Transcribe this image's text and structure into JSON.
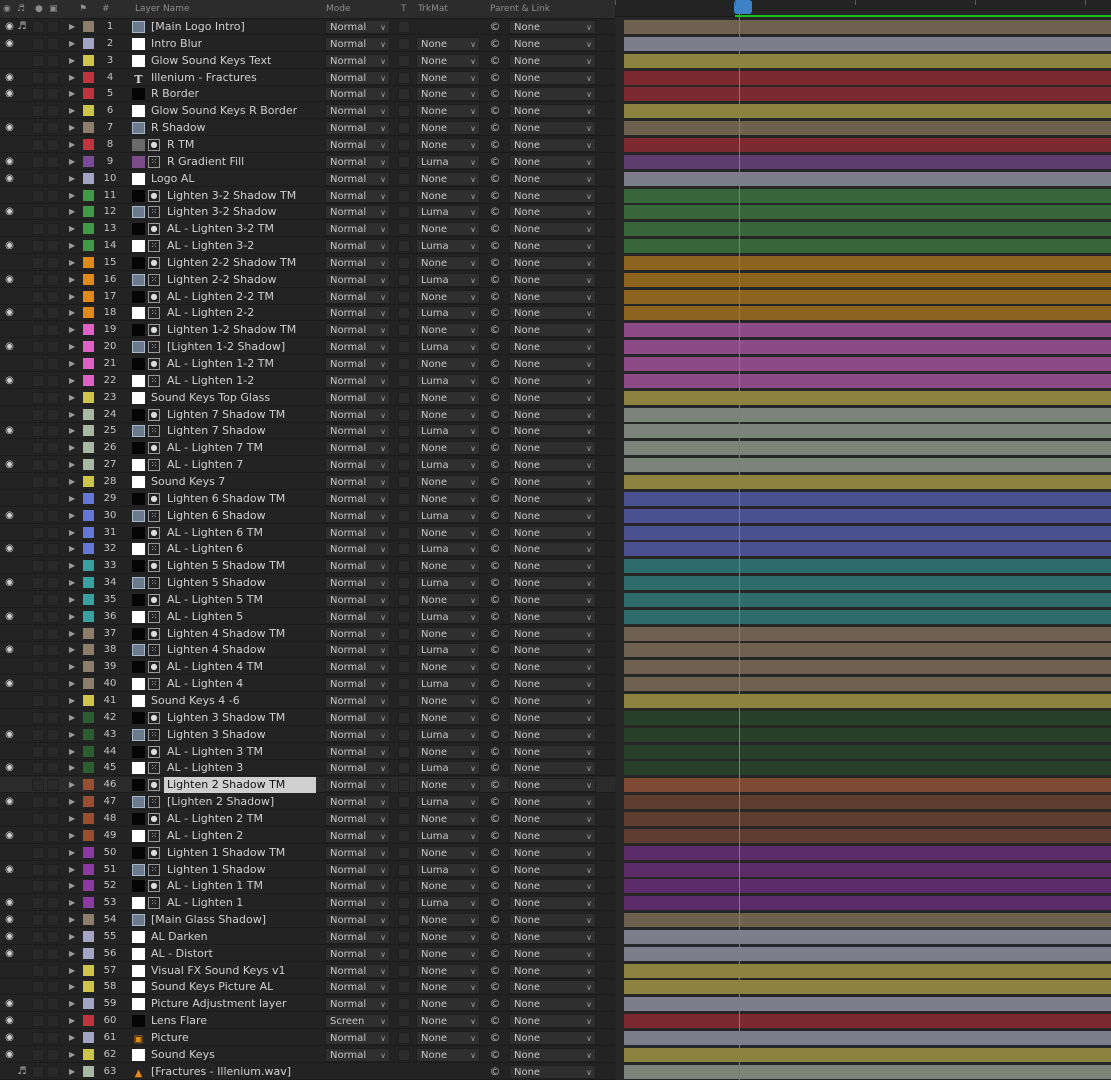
{
  "header": {
    "col_num": "#",
    "col_name": "Layer Name",
    "col_mode": "Mode",
    "col_t": "T",
    "col_trkmat": "TrkMat",
    "col_parent": "Parent & Link"
  },
  "colors": {
    "tan": "#8c7e6a",
    "lavender": "#a4a4c6",
    "yellow": "#cfc44a",
    "red": "#c0353c",
    "purple": "#7a4a98",
    "green": "#3e9a46",
    "orange": "#e08a1c",
    "pink": "#e060c8",
    "sage": "#a9b8a2",
    "blue": "#6378d8",
    "teal": "#38a0a0",
    "darkgreen": "#2a5e2e",
    "brown": "#9a4e30",
    "dkpurple": "#8a3aa0",
    "cti": "#3a8fd8",
    "workarea": "#18c020",
    "selected_bar": "#7e4a34"
  },
  "bar_colors": {
    "tan": "#6e6150",
    "lavender": "#7d7d8c",
    "yellow": "#8c8340",
    "red": "#7c2a30",
    "purple": "#5e3c6e",
    "green": "#36663a",
    "orange": "#8c6420",
    "pink": "#8c4a86",
    "sage": "#7a847a",
    "blue": "#4a5090",
    "teal": "#2e6c6c",
    "darkgreen": "#28402a",
    "brown": "#5e3c30",
    "dkpurple": "#5c2c68"
  },
  "layers": [
    {
      "num": "1",
      "name": "[Main Logo Intro]",
      "color": "tan",
      "eye": true,
      "audio": true,
      "type": "comp",
      "mode": "Normal",
      "trkmat": "",
      "parent": "None"
    },
    {
      "num": "2",
      "name": "Intro Blur",
      "color": "lavender",
      "eye": true,
      "type": "white",
      "mode": "Normal",
      "trkmat": "None",
      "parent": "None"
    },
    {
      "num": "3",
      "name": "Glow Sound Keys Text",
      "color": "yellow",
      "type": "white",
      "mode": "Normal",
      "trkmat": "None",
      "parent": "None"
    },
    {
      "num": "4",
      "name": "Illenium - Fractures",
      "color": "red",
      "eye": true,
      "type": "text",
      "mode": "Normal",
      "trkmat": "None",
      "parent": "None"
    },
    {
      "num": "5",
      "name": "R Border",
      "color": "red",
      "eye": true,
      "type": "black",
      "mode": "Normal",
      "trkmat": "None",
      "parent": "None"
    },
    {
      "num": "6",
      "name": "Glow Sound Keys R Border",
      "color": "yellow",
      "type": "white",
      "mode": "Normal",
      "trkmat": "None",
      "parent": "None"
    },
    {
      "num": "7",
      "name": "R Shadow",
      "color": "tan",
      "eye": true,
      "type": "comp",
      "mode": "Normal",
      "trkmat": "None",
      "parent": "None"
    },
    {
      "num": "8",
      "name": "R TM",
      "color": "red",
      "type": "gray",
      "mbox": "dot",
      "mode": "Normal",
      "trkmat": "None",
      "parent": "None"
    },
    {
      "num": "9",
      "name": "R Gradient Fill",
      "color": "purple",
      "eye": true,
      "type": "purple",
      "mbox": "dash",
      "mode": "Normal",
      "trkmat": "Luma",
      "parent": "None"
    },
    {
      "num": "10",
      "name": "Logo AL",
      "color": "lavender",
      "eye": true,
      "type": "white",
      "mode": "Normal",
      "trkmat": "None",
      "parent": "None"
    },
    {
      "num": "11",
      "name": "Lighten 3-2 Shadow TM",
      "color": "green",
      "type": "black",
      "mbox": "dot",
      "mode": "Normal",
      "trkmat": "None",
      "parent": "None"
    },
    {
      "num": "12",
      "name": "Lighten 3-2 Shadow",
      "color": "green",
      "eye": true,
      "type": "comp",
      "mbox": "dash",
      "mode": "Normal",
      "trkmat": "Luma",
      "parent": "None"
    },
    {
      "num": "13",
      "name": "AL - Lighten 3-2 TM",
      "color": "green",
      "type": "black",
      "mbox": "dot",
      "mode": "Normal",
      "trkmat": "None",
      "parent": "None"
    },
    {
      "num": "14",
      "name": "AL - Lighten 3-2",
      "color": "green",
      "eye": true,
      "type": "white",
      "mbox": "dash",
      "mode": "Normal",
      "trkmat": "Luma",
      "parent": "None"
    },
    {
      "num": "15",
      "name": "Lighten 2-2 Shadow TM",
      "color": "orange",
      "type": "black",
      "mbox": "dot",
      "mode": "Normal",
      "trkmat": "None",
      "parent": "None"
    },
    {
      "num": "16",
      "name": "Lighten 2-2 Shadow",
      "color": "orange",
      "eye": true,
      "type": "comp",
      "mbox": "dash",
      "mode": "Normal",
      "trkmat": "Luma",
      "parent": "None"
    },
    {
      "num": "17",
      "name": "AL - Lighten 2-2 TM",
      "color": "orange",
      "type": "black",
      "mbox": "dot",
      "mode": "Normal",
      "trkmat": "None",
      "parent": "None"
    },
    {
      "num": "18",
      "name": "AL - Lighten 2-2",
      "color": "orange",
      "eye": true,
      "type": "white",
      "mbox": "dash",
      "mode": "Normal",
      "trkmat": "Luma",
      "parent": "None"
    },
    {
      "num": "19",
      "name": "Lighten 1-2 Shadow TM",
      "color": "pink",
      "type": "black",
      "mbox": "dot",
      "mode": "Normal",
      "trkmat": "None",
      "parent": "None"
    },
    {
      "num": "20",
      "name": "[Lighten 1-2 Shadow]",
      "color": "pink",
      "eye": true,
      "type": "comp",
      "mbox": "dash",
      "mode": "Normal",
      "trkmat": "Luma",
      "parent": "None"
    },
    {
      "num": "21",
      "name": "AL - Lighten 1-2 TM",
      "color": "pink",
      "type": "black",
      "mbox": "dot",
      "mode": "Normal",
      "trkmat": "None",
      "parent": "None"
    },
    {
      "num": "22",
      "name": "AL - Lighten 1-2",
      "color": "pink",
      "eye": true,
      "type": "white",
      "mbox": "dash",
      "mode": "Normal",
      "trkmat": "Luma",
      "parent": "None"
    },
    {
      "num": "23",
      "name": "Sound Keys Top Glass",
      "color": "yellow",
      "type": "white",
      "mode": "Normal",
      "trkmat": "None",
      "parent": "None"
    },
    {
      "num": "24",
      "name": "Lighten 7 Shadow TM",
      "color": "sage",
      "type": "black",
      "mbox": "dot",
      "mode": "Normal",
      "trkmat": "None",
      "parent": "None"
    },
    {
      "num": "25",
      "name": "Lighten 7 Shadow",
      "color": "sage",
      "eye": true,
      "type": "comp",
      "mbox": "dash",
      "mode": "Normal",
      "trkmat": "Luma",
      "parent": "None"
    },
    {
      "num": "26",
      "name": "AL - Lighten 7 TM",
      "color": "sage",
      "type": "black",
      "mbox": "dot",
      "mode": "Normal",
      "trkmat": "None",
      "parent": "None"
    },
    {
      "num": "27",
      "name": "AL - Lighten 7",
      "color": "sage",
      "eye": true,
      "type": "white",
      "mbox": "dash",
      "mode": "Normal",
      "trkmat": "Luma",
      "parent": "None"
    },
    {
      "num": "28",
      "name": "Sound Keys 7",
      "color": "yellow",
      "type": "white",
      "mode": "Normal",
      "trkmat": "None",
      "parent": "None"
    },
    {
      "num": "29",
      "name": "Lighten 6 Shadow TM",
      "color": "blue",
      "type": "black",
      "mbox": "dot",
      "mode": "Normal",
      "trkmat": "None",
      "parent": "None"
    },
    {
      "num": "30",
      "name": "Lighten 6 Shadow",
      "color": "blue",
      "eye": true,
      "type": "comp",
      "mbox": "dash",
      "mode": "Normal",
      "trkmat": "Luma",
      "parent": "None"
    },
    {
      "num": "31",
      "name": "AL - Lighten 6 TM",
      "color": "blue",
      "type": "black",
      "mbox": "dot",
      "mode": "Normal",
      "trkmat": "None",
      "parent": "None"
    },
    {
      "num": "32",
      "name": "AL - Lighten 6",
      "color": "blue",
      "eye": true,
      "type": "white",
      "mbox": "dash",
      "mode": "Normal",
      "trkmat": "Luma",
      "parent": "None"
    },
    {
      "num": "33",
      "name": "Lighten 5 Shadow TM",
      "color": "teal",
      "type": "black",
      "mbox": "dot",
      "mode": "Normal",
      "trkmat": "None",
      "parent": "None"
    },
    {
      "num": "34",
      "name": "Lighten 5 Shadow",
      "color": "teal",
      "eye": true,
      "type": "comp",
      "mbox": "dash",
      "mode": "Normal",
      "trkmat": "Luma",
      "parent": "None"
    },
    {
      "num": "35",
      "name": "AL - Lighten 5 TM",
      "color": "teal",
      "type": "black",
      "mbox": "dot",
      "mode": "Normal",
      "trkmat": "None",
      "parent": "None"
    },
    {
      "num": "36",
      "name": "AL - Lighten 5",
      "color": "teal",
      "eye": true,
      "type": "white",
      "mbox": "dash",
      "mode": "Normal",
      "trkmat": "Luma",
      "parent": "None"
    },
    {
      "num": "37",
      "name": "Lighten 4 Shadow TM",
      "color": "tan",
      "type": "black",
      "mbox": "dot",
      "mode": "Normal",
      "trkmat": "None",
      "parent": "None"
    },
    {
      "num": "38",
      "name": "Lighten 4 Shadow",
      "color": "tan",
      "eye": true,
      "type": "comp",
      "mbox": "dash",
      "mode": "Normal",
      "trkmat": "Luma",
      "parent": "None"
    },
    {
      "num": "39",
      "name": "AL - Lighten 4 TM",
      "color": "tan",
      "type": "black",
      "mbox": "dot",
      "mode": "Normal",
      "trkmat": "None",
      "parent": "None"
    },
    {
      "num": "40",
      "name": "AL - Lighten 4",
      "color": "tan",
      "eye": true,
      "type": "white",
      "mbox": "dash",
      "mode": "Normal",
      "trkmat": "Luma",
      "parent": "None"
    },
    {
      "num": "41",
      "name": "Sound Keys 4 -6",
      "color": "yellow",
      "type": "white",
      "mode": "Normal",
      "trkmat": "None",
      "parent": "None"
    },
    {
      "num": "42",
      "name": "Lighten 3 Shadow TM",
      "color": "darkgreen",
      "type": "black",
      "mbox": "dot",
      "mode": "Normal",
      "trkmat": "None",
      "parent": "None"
    },
    {
      "num": "43",
      "name": "Lighten 3 Shadow",
      "color": "darkgreen",
      "eye": true,
      "type": "comp",
      "mbox": "dash",
      "mode": "Normal",
      "trkmat": "Luma",
      "parent": "None"
    },
    {
      "num": "44",
      "name": "AL - Lighten 3 TM",
      "color": "darkgreen",
      "type": "black",
      "mbox": "dot",
      "mode": "Normal",
      "trkmat": "None",
      "parent": "None"
    },
    {
      "num": "45",
      "name": "AL - Lighten 3",
      "color": "darkgreen",
      "eye": true,
      "type": "white",
      "mbox": "dash",
      "mode": "Normal",
      "trkmat": "Luma",
      "parent": "None"
    },
    {
      "num": "46",
      "name": "Lighten 2 Shadow TM",
      "color": "brown",
      "type": "black",
      "mbox": "dot",
      "mode": "Normal",
      "trkmat": "None",
      "parent": "None",
      "selected": true
    },
    {
      "num": "47",
      "name": "[Lighten 2 Shadow]",
      "color": "brown",
      "eye": true,
      "type": "comp",
      "mbox": "dash",
      "mode": "Normal",
      "trkmat": "Luma",
      "parent": "None"
    },
    {
      "num": "48",
      "name": "AL - Lighten 2 TM",
      "color": "brown",
      "type": "black",
      "mbox": "dot",
      "mode": "Normal",
      "trkmat": "None",
      "parent": "None"
    },
    {
      "num": "49",
      "name": "AL - Lighten 2",
      "color": "brown",
      "eye": true,
      "type": "white",
      "mbox": "dash",
      "mode": "Normal",
      "trkmat": "Luma",
      "parent": "None"
    },
    {
      "num": "50",
      "name": "Lighten 1 Shadow TM",
      "color": "dkpurple",
      "type": "black",
      "mbox": "dot",
      "mode": "Normal",
      "trkmat": "None",
      "parent": "None"
    },
    {
      "num": "51",
      "name": "Lighten 1 Shadow",
      "color": "dkpurple",
      "eye": true,
      "type": "comp",
      "mbox": "dash",
      "mode": "Normal",
      "trkmat": "Luma",
      "parent": "None"
    },
    {
      "num": "52",
      "name": "AL - Lighten 1 TM",
      "color": "dkpurple",
      "type": "black",
      "mbox": "dot",
      "mode": "Normal",
      "trkmat": "None",
      "parent": "None"
    },
    {
      "num": "53",
      "name": "AL - Lighten 1",
      "color": "dkpurple",
      "eye": true,
      "type": "white",
      "mbox": "dash",
      "mode": "Normal",
      "trkmat": "Luma",
      "parent": "None"
    },
    {
      "num": "54",
      "name": "[Main Glass Shadow]",
      "color": "tan",
      "eye": true,
      "type": "comp",
      "mode": "Normal",
      "trkmat": "None",
      "parent": "None"
    },
    {
      "num": "55",
      "name": "AL Darken",
      "color": "lavender",
      "eye": true,
      "type": "white",
      "mode": "Normal",
      "trkmat": "None",
      "parent": "None"
    },
    {
      "num": "56",
      "name": "AL - Distort",
      "color": "lavender",
      "eye": true,
      "type": "white",
      "mode": "Normal",
      "trkmat": "None",
      "parent": "None"
    },
    {
      "num": "57",
      "name": "Visual FX Sound Keys v1",
      "color": "yellow",
      "type": "white",
      "mode": "Normal",
      "trkmat": "None",
      "parent": "None"
    },
    {
      "num": "58",
      "name": "Sound Keys Picture AL",
      "color": "yellow",
      "type": "white",
      "mode": "Normal",
      "trkmat": "None",
      "parent": "None"
    },
    {
      "num": "59",
      "name": "Picture Adjustment layer",
      "color": "lavender",
      "eye": true,
      "type": "white",
      "mode": "Normal",
      "trkmat": "None",
      "parent": "None"
    },
    {
      "num": "60",
      "name": "Lens Flare",
      "color": "red",
      "eye": true,
      "type": "black",
      "mode": "Screen",
      "trkmat": "None",
      "parent": "None"
    },
    {
      "num": "61",
      "name": "Picture",
      "color": "lavender",
      "eye": true,
      "type": "picture",
      "mode": "Normal",
      "trkmat": "None",
      "parent": "None"
    },
    {
      "num": "62",
      "name": "Sound Keys",
      "color": "yellow",
      "eye": true,
      "type": "white",
      "mode": "Normal",
      "trkmat": "None",
      "parent": "None"
    },
    {
      "num": "63",
      "name": "[Fractures - Illenium.wav]",
      "color": "sage",
      "audio": true,
      "type": "audio",
      "mode": "",
      "trkmat": "",
      "parent": "None"
    }
  ]
}
